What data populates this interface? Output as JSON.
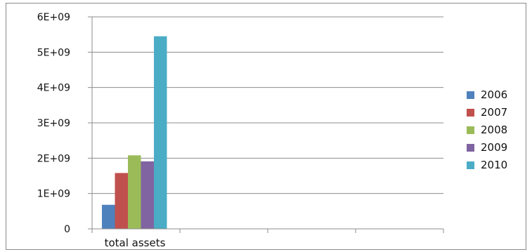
{
  "chart_data": {
    "type": "bar",
    "categories": [
      "total assets"
    ],
    "series": [
      {
        "name": "2006",
        "color": "#4f81bd",
        "values": [
          680000000
        ]
      },
      {
        "name": "2007",
        "color": "#c0504d",
        "values": [
          1580000000
        ]
      },
      {
        "name": "2008",
        "color": "#9bbb59",
        "values": [
          2080000000
        ]
      },
      {
        "name": "2009",
        "color": "#8064a2",
        "values": [
          1910000000
        ]
      },
      {
        "name": "2010",
        "color": "#4bacc6",
        "values": [
          5450000000
        ]
      }
    ],
    "ylim": [
      0,
      6000000000
    ],
    "yticks": [
      0,
      1000000000,
      2000000000,
      3000000000,
      4000000000,
      5000000000,
      6000000000
    ],
    "ytick_labels": [
      "0",
      "1E+09",
      "2E+09",
      "3E+09",
      "4E+09",
      "5E+09",
      "6E+09"
    ],
    "grid": true,
    "legend_position": "right"
  }
}
